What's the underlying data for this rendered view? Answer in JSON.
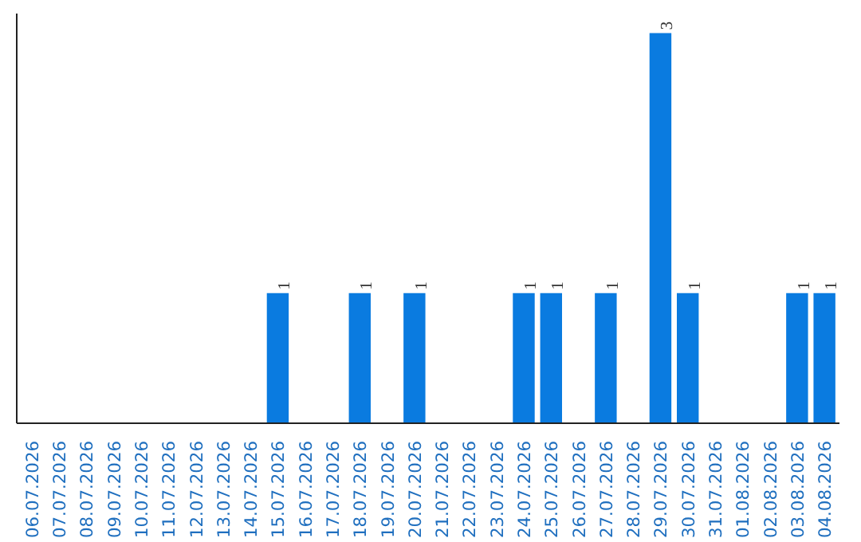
{
  "chart_data": {
    "type": "bar",
    "categories": [
      "06.07.2026",
      "07.07.2026",
      "08.07.2026",
      "09.07.2026",
      "10.07.2026",
      "11.07.2026",
      "12.07.2026",
      "13.07.2026",
      "14.07.2026",
      "15.07.2026",
      "16.07.2026",
      "17.07.2026",
      "18.07.2026",
      "19.07.2026",
      "20.07.2026",
      "21.07.2026",
      "22.07.2026",
      "23.07.2026",
      "24.07.2026",
      "25.07.2026",
      "26.07.2026",
      "27.07.2026",
      "28.07.2026",
      "29.07.2026",
      "30.07.2026",
      "31.07.2026",
      "01.08.2026",
      "02.08.2026",
      "03.08.2026",
      "04.08.2026"
    ],
    "values": [
      0,
      0,
      0,
      0,
      0,
      0,
      0,
      0,
      0,
      1,
      0,
      0,
      1,
      0,
      1,
      0,
      0,
      0,
      1,
      1,
      0,
      1,
      0,
      3,
      1,
      0,
      0,
      0,
      1,
      1
    ],
    "value_labels": [
      null,
      null,
      null,
      null,
      null,
      null,
      null,
      null,
      null,
      "1",
      null,
      null,
      "1",
      null,
      "1",
      null,
      null,
      null,
      "1",
      "1",
      null,
      "1",
      null,
      "3",
      "1",
      null,
      null,
      null,
      "1",
      "1"
    ],
    "color": "#0a7be0",
    "ylim": [
      0,
      3.15
    ],
    "tick_labels": "x",
    "grid": false
  }
}
